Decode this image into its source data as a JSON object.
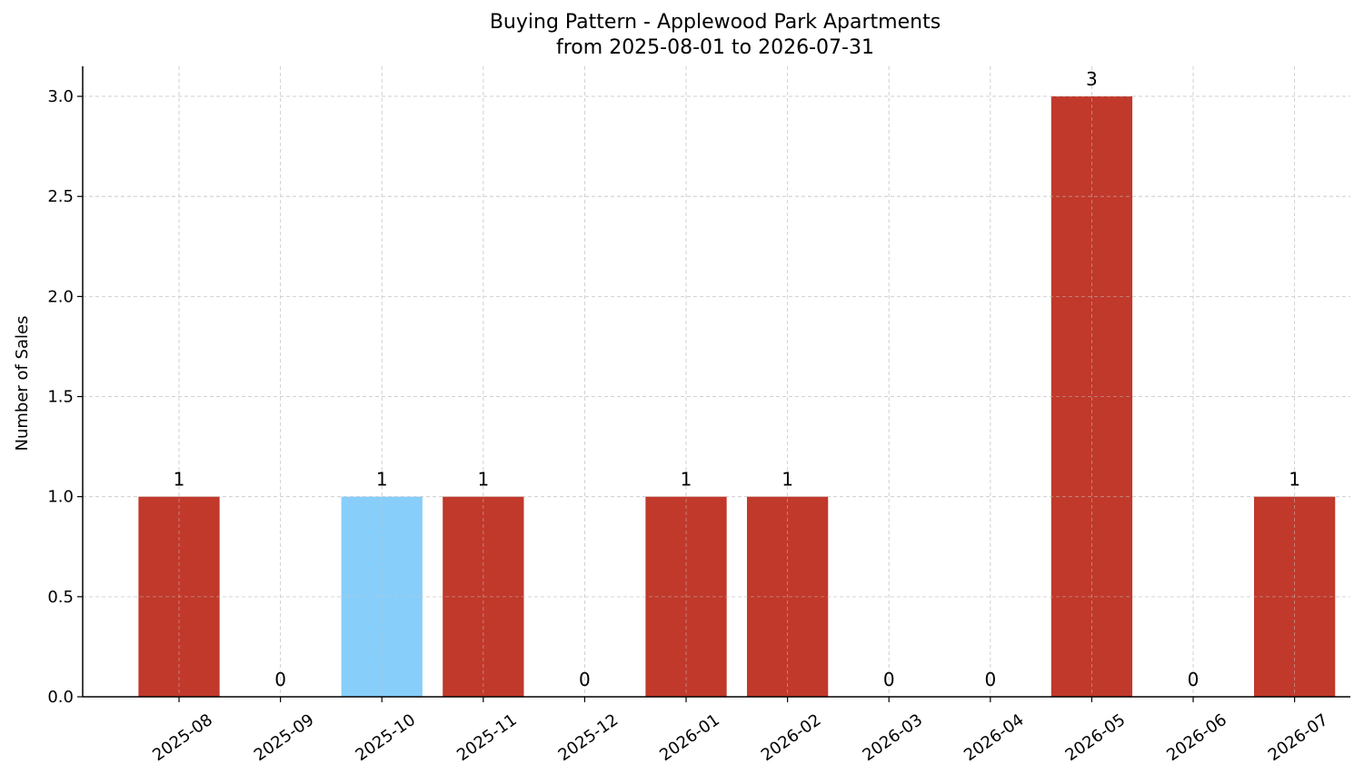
{
  "chart_data": {
    "type": "bar",
    "title": "Buying Pattern - Applewood Park Apartments",
    "subtitle": "from 2025-08-01 to 2026-07-31",
    "xlabel": "",
    "ylabel": "Number of Sales",
    "categories": [
      "2025-08",
      "2025-09",
      "2025-10",
      "2025-11",
      "2025-12",
      "2026-01",
      "2026-02",
      "2026-03",
      "2026-04",
      "2026-05",
      "2026-06",
      "2026-07"
    ],
    "values": [
      1,
      0,
      1,
      1,
      0,
      1,
      1,
      0,
      0,
      3,
      0,
      1
    ],
    "bar_colors": [
      "#c0392b",
      "#c0392b",
      "#87cefa",
      "#c0392b",
      "#c0392b",
      "#c0392b",
      "#c0392b",
      "#c0392b",
      "#c0392b",
      "#c0392b",
      "#c0392b",
      "#c0392b"
    ],
    "data_labels": [
      "1",
      "0",
      "1",
      "1",
      "0",
      "1",
      "1",
      "0",
      "0",
      "3",
      "0",
      "1"
    ],
    "yticks": [
      "0.0",
      "0.5",
      "1.0",
      "1.5",
      "2.0",
      "2.5",
      "3.0"
    ],
    "ylim": [
      0,
      3.15
    ],
    "grid": true,
    "legend": "none"
  }
}
